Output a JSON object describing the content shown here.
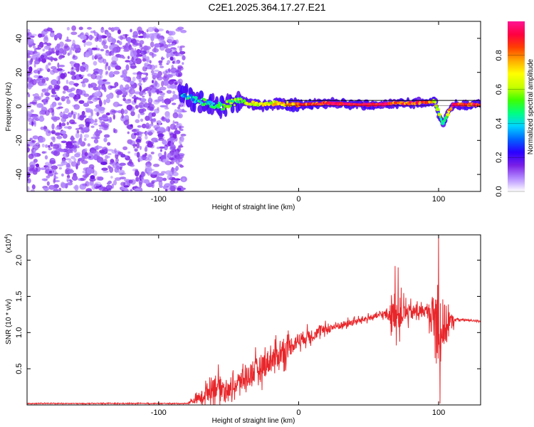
{
  "title": "C2E1.2025.364.17.27.E21",
  "chart_data": [
    {
      "type": "heatmap",
      "xlabel": "Height of straight line (km)",
      "ylabel": "Frequency (Hz)",
      "xlim": [
        -194,
        130
      ],
      "ylim": [
        -50,
        50
      ],
      "xticks": [
        -100,
        0,
        100
      ],
      "yticks": [
        -40,
        -20,
        0,
        20,
        40
      ],
      "colorbar": {
        "label": "Normalized spectral amplitude",
        "range": [
          0,
          1
        ],
        "ticks": [
          "0.0",
          "0.2",
          "0.4",
          "0.6",
          "0.8"
        ],
        "colors": [
          "#ffffff",
          "#b48cff",
          "#7a1fe6",
          "#2a00ff",
          "#0066ff",
          "#00d4ff",
          "#00ff80",
          "#40ff00",
          "#c8ff00",
          "#ffff00",
          "#ffaa00",
          "#ff4000",
          "#ff0040",
          "#ff1493"
        ]
      },
      "noise_region_end_km": -85,
      "signal_band_center_hz": 1,
      "signal_track": [
        {
          "x": -85,
          "f": 8,
          "amp": 0.35
        },
        {
          "x": -75,
          "f": 4,
          "amp": 0.4
        },
        {
          "x": -65,
          "f": 2,
          "amp": 0.45
        },
        {
          "x": -55,
          "f": 0,
          "amp": 0.5
        },
        {
          "x": -45,
          "f": 3,
          "amp": 0.55
        },
        {
          "x": -35,
          "f": 2,
          "amp": 0.6
        },
        {
          "x": -25,
          "f": 1,
          "amp": 0.65
        },
        {
          "x": -15,
          "f": 2,
          "amp": 0.7
        },
        {
          "x": -5,
          "f": 1,
          "amp": 0.75
        },
        {
          "x": 5,
          "f": 1,
          "amp": 0.85
        },
        {
          "x": 20,
          "f": 2,
          "amp": 0.9
        },
        {
          "x": 40,
          "f": 1,
          "amp": 0.95
        },
        {
          "x": 60,
          "f": 1,
          "amp": 0.95
        },
        {
          "x": 70,
          "f": 2,
          "amp": 0.8
        },
        {
          "x": 85,
          "f": 2,
          "amp": 0.9
        },
        {
          "x": 97,
          "f": 3,
          "amp": 0.7
        },
        {
          "x": 103,
          "f": -10,
          "amp": 0.4
        },
        {
          "x": 110,
          "f": 1,
          "amp": 0.9
        },
        {
          "x": 130,
          "f": 1,
          "amp": 0.9
        }
      ]
    },
    {
      "type": "line",
      "xlabel": "Height of straight line (km)",
      "ylabel": "SNR (10 * v/v)",
      "yscale_label": "(x10",
      "yscale_exp": "4",
      "xlim": [
        -194,
        130
      ],
      "ylim": [
        0,
        2.35
      ],
      "xticks": [
        -100,
        0,
        100
      ],
      "yticks": [
        0.5,
        1.0,
        1.5,
        2.0
      ],
      "ytick_labels": [
        "0.5",
        "1.0",
        "1.5",
        "2.0"
      ],
      "series": [
        {
          "name": "SNR",
          "color": "#e8262a",
          "envelope": [
            {
              "x": -194,
              "mean": 0.02,
              "amp": 0.01
            },
            {
              "x": -80,
              "mean": 0.02,
              "amp": 0.01
            },
            {
              "x": -70,
              "mean": 0.1,
              "amp": 0.15
            },
            {
              "x": -60,
              "mean": 0.28,
              "amp": 0.35
            },
            {
              "x": -50,
              "mean": 0.2,
              "amp": 0.2
            },
            {
              "x": -40,
              "mean": 0.35,
              "amp": 0.3
            },
            {
              "x": -25,
              "mean": 0.55,
              "amp": 0.35
            },
            {
              "x": -10,
              "mean": 0.75,
              "amp": 0.3
            },
            {
              "x": 0,
              "mean": 0.9,
              "amp": 0.2
            },
            {
              "x": 20,
              "mean": 1.05,
              "amp": 0.12
            },
            {
              "x": 40,
              "mean": 1.15,
              "amp": 0.08
            },
            {
              "x": 60,
              "mean": 1.25,
              "amp": 0.07
            },
            {
              "x": 70,
              "mean": 1.25,
              "amp": 0.45
            },
            {
              "x": 80,
              "mean": 1.28,
              "amp": 0.2
            },
            {
              "x": 92,
              "mean": 1.3,
              "amp": 0.15
            },
            {
              "x": 100,
              "mean": 1.1,
              "amp": 1.0
            },
            {
              "x": 106,
              "mean": 1.1,
              "amp": 0.5
            },
            {
              "x": 112,
              "mean": 1.18,
              "amp": 0.03
            },
            {
              "x": 130,
              "mean": 1.16,
              "amp": 0.02
            }
          ],
          "peaks": [
            {
              "x": 69,
              "y": 1.92
            },
            {
              "x": 71,
              "y": 1.9
            },
            {
              "x": 100,
              "y": 2.35
            },
            {
              "x": 101,
              "y": 0.02
            }
          ]
        }
      ]
    }
  ]
}
